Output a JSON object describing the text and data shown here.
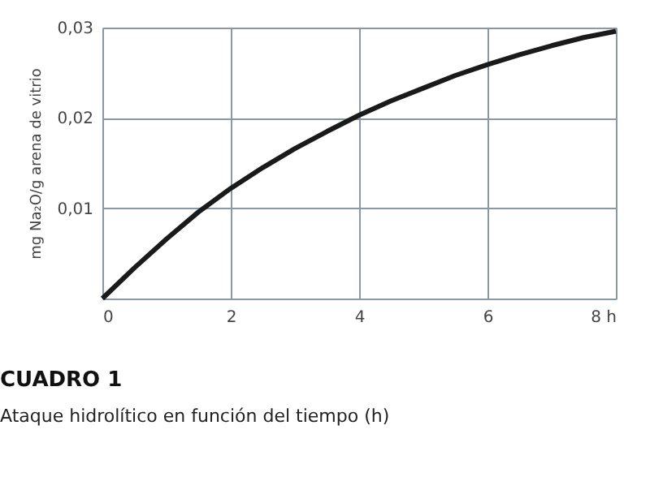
{
  "chart_data": {
    "type": "line",
    "title": "CUADRO 1",
    "subtitle": "Ataque hidrolítico en función del tiempo (h)",
    "ylabel": "mg Na₂O/g arena de vitrio",
    "x": [
      0,
      0.5,
      1,
      1.5,
      2,
      2.5,
      3,
      3.5,
      4,
      4.5,
      5,
      5.5,
      6,
      6.5,
      7,
      7.5,
      8
    ],
    "series": [
      {
        "color": "#1a1a1a",
        "values": [
          0,
          0.0034,
          0.0066,
          0.0096,
          0.0122,
          0.0145,
          0.0166,
          0.0185,
          0.0203,
          0.0219,
          0.0233,
          0.0247,
          0.0259,
          0.027,
          0.028,
          0.0289,
          0.0296
        ]
      }
    ],
    "xlim": [
      0,
      8
    ],
    "xticks": [
      0,
      2,
      4,
      6,
      {
        "value": 8,
        "label": "8 h"
      }
    ],
    "ylim": [
      0,
      0.03
    ],
    "yticks": [
      {
        "value": 0,
        "label": null
      },
      {
        "value": 0.01,
        "label": "0,01"
      },
      {
        "value": 0.02,
        "label": "0,02"
      },
      {
        "value": 0.03,
        "label": "0,03"
      }
    ],
    "grid": true,
    "marker": "none",
    "line_style": "solid"
  }
}
